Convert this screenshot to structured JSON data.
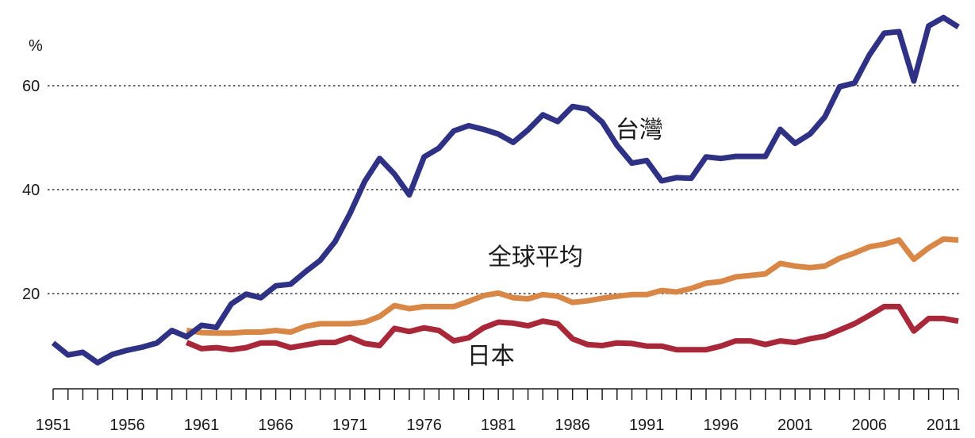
{
  "chart_data": {
    "type": "line",
    "title": "",
    "xlabel": "",
    "ylabel": "%",
    "xlim": [
      1951,
      2012
    ],
    "ylim": [
      -8,
      70
    ],
    "grid": "horizontal-dotted",
    "y_ticks": [
      20,
      40,
      60
    ],
    "x_tick_labels": [
      1951,
      1956,
      1961,
      1966,
      1971,
      1976,
      1981,
      1986,
      1991,
      1996,
      2001,
      2006,
      2011
    ],
    "series": [
      {
        "name": "台灣",
        "color": "#2e3184",
        "label_x": 1990.5,
        "label_y": 50,
        "x": [
          1951,
          1952,
          1953,
          1954,
          1955,
          1956,
          1957,
          1958,
          1959,
          1960,
          1961,
          1962,
          1963,
          1964,
          1965,
          1966,
          1967,
          1968,
          1969,
          1970,
          1971,
          1972,
          1973,
          1974,
          1975,
          1976,
          1977,
          1978,
          1979,
          1980,
          1981,
          1982,
          1983,
          1984,
          1985,
          1986,
          1987,
          1988,
          1989,
          1990,
          1991,
          1992,
          1993,
          1994,
          1995,
          1996,
          1997,
          1998,
          1999,
          2000,
          2001,
          2002,
          2003,
          2004,
          2005,
          2006,
          2007,
          2008,
          2009,
          2010,
          2011,
          2012
        ],
        "values": [
          10.5,
          8.2,
          8.7,
          6.7,
          8.3,
          9.1,
          9.7,
          10.5,
          12.9,
          11.7,
          13.9,
          13.5,
          18,
          19.9,
          19.2,
          21.5,
          21.8,
          24.2,
          26.4,
          30,
          35.4,
          41.6,
          46,
          43,
          39,
          46.3,
          48,
          51.3,
          52.3,
          51.6,
          50.7,
          49.1,
          51.5,
          54.4,
          53.1,
          56,
          55.5,
          53,
          48.5,
          45.1,
          45.6,
          41.7,
          42.3,
          42.2,
          46.3,
          46,
          46.4,
          46.4,
          46.4,
          51.6,
          48.9,
          50.7,
          54,
          59.8,
          60.5,
          65.9,
          70.1,
          70.4,
          60.9,
          71.5,
          73.1,
          71.3
        ]
      },
      {
        "name": "全球平均",
        "color": "#d98747",
        "label_x": 1983.5,
        "label_y": 25.5,
        "x": [
          1960,
          1961,
          1962,
          1963,
          1964,
          1965,
          1966,
          1967,
          1968,
          1969,
          1970,
          1971,
          1972,
          1973,
          1974,
          1975,
          1976,
          1977,
          1978,
          1979,
          1980,
          1981,
          1982,
          1983,
          1984,
          1985,
          1986,
          1987,
          1988,
          1989,
          1990,
          1991,
          1992,
          1993,
          1994,
          1995,
          1996,
          1997,
          1998,
          1999,
          2000,
          2001,
          2002,
          2003,
          2004,
          2005,
          2006,
          2007,
          2008,
          2009,
          2010,
          2011,
          2012
        ],
        "values": [
          12.9,
          12.5,
          12.4,
          12.4,
          12.6,
          12.6,
          12.9,
          12.6,
          13.7,
          14.2,
          14.2,
          14.2,
          14.5,
          15.6,
          17.7,
          17.1,
          17.5,
          17.5,
          17.5,
          18.5,
          19.6,
          20.1,
          19.2,
          19,
          19.8,
          19.5,
          18.3,
          18.6,
          19.1,
          19.5,
          19.8,
          19.8,
          20.6,
          20.3,
          21,
          22,
          22.3,
          23.2,
          23.5,
          23.8,
          25.8,
          25.3,
          25,
          25.3,
          26.8,
          27.8,
          29,
          29.5,
          30.3,
          26.6,
          28.8,
          30.5,
          30.3
        ]
      },
      {
        "name": "日本",
        "color": "#a8283a",
        "label_x": 1980.5,
        "label_y": 6.5,
        "x": [
          1960,
          1961,
          1962,
          1963,
          1964,
          1965,
          1966,
          1967,
          1968,
          1969,
          1970,
          1971,
          1972,
          1973,
          1974,
          1975,
          1976,
          1977,
          1978,
          1979,
          1980,
          1981,
          1982,
          1983,
          1984,
          1985,
          1986,
          1987,
          1988,
          1989,
          1990,
          1991,
          1992,
          1993,
          1994,
          1995,
          1996,
          1997,
          1998,
          1999,
          2000,
          2001,
          2002,
          2003,
          2004,
          2005,
          2006,
          2007,
          2008,
          2009,
          2010,
          2011,
          2012
        ],
        "values": [
          10.6,
          9.4,
          9.6,
          9.2,
          9.6,
          10.5,
          10.5,
          9.6,
          10.1,
          10.6,
          10.6,
          11.6,
          10.4,
          10,
          13.3,
          12.7,
          13.4,
          12.9,
          10.9,
          11.5,
          13.4,
          14.5,
          14.3,
          13.8,
          14.7,
          14.2,
          11.3,
          10.2,
          10,
          10.5,
          10.4,
          9.9,
          9.9,
          9.2,
          9.2,
          9.2,
          9.9,
          10.9,
          10.9,
          10.2,
          10.9,
          10.6,
          11.3,
          11.8,
          13,
          14.2,
          15.8,
          17.5,
          17.5,
          12.8,
          15.2,
          15.2,
          14.7
        ]
      }
    ]
  }
}
